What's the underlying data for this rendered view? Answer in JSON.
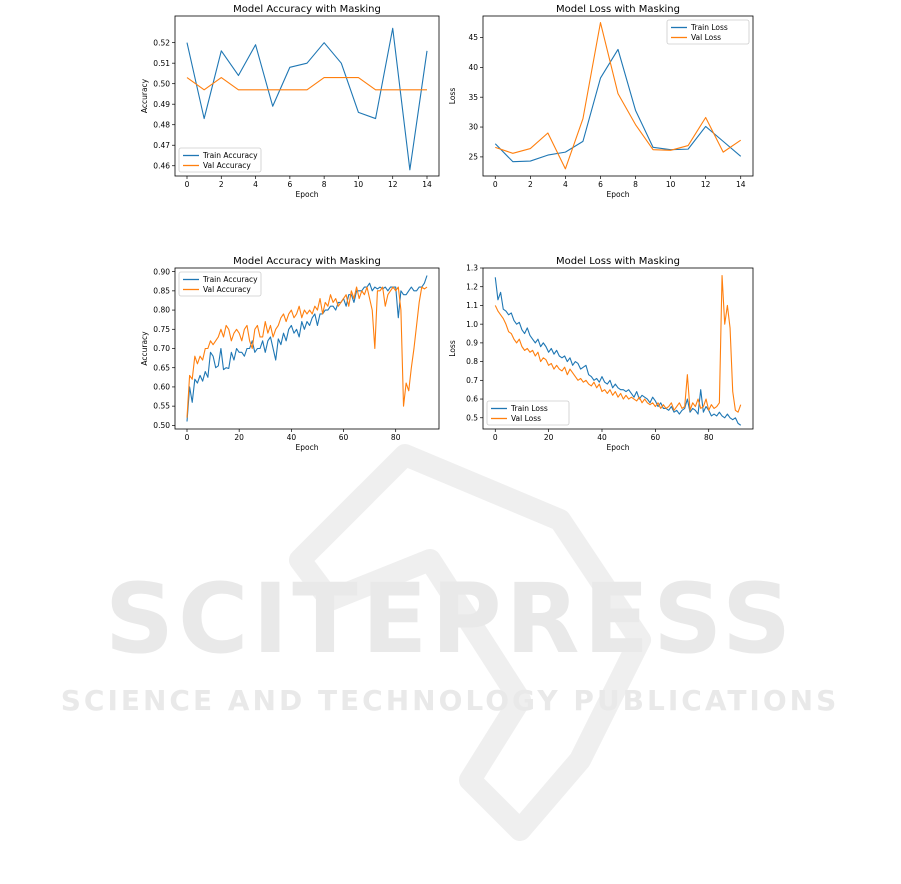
{
  "watermark": {
    "brand": "SCITEPRESS",
    "tagline": "SCIENCE AND TECHNOLOGY PUBLICATIONS"
  },
  "colors": {
    "train": "#1f77b4",
    "val": "#ff7f0e",
    "watermark": "#ececec"
  },
  "chart_data": [
    {
      "type": "line",
      "title": "Model Accuracy with Masking",
      "xlabel": "Epoch",
      "ylabel": "Accuracy",
      "xlim": [
        -0.7,
        14.7
      ],
      "ylim": [
        0.455,
        0.533
      ],
      "xticks": [
        0,
        2,
        4,
        6,
        8,
        10,
        12,
        14
      ],
      "yticks": [
        0.46,
        0.47,
        0.48,
        0.49,
        0.5,
        0.51,
        0.52
      ],
      "ytick_labels": [
        "0.46",
        "0.47",
        "0.48",
        "0.49",
        "0.50",
        "0.51",
        "0.52"
      ],
      "legend": "lower-left",
      "series": [
        {
          "name": "Train Accuracy",
          "color": "#1f77b4",
          "x": [
            0,
            1,
            2,
            3,
            4,
            5,
            6,
            7,
            8,
            9,
            10,
            11,
            12,
            13,
            14
          ],
          "values": [
            0.52,
            0.483,
            0.516,
            0.504,
            0.519,
            0.489,
            0.508,
            0.51,
            0.52,
            0.51,
            0.486,
            0.483,
            0.527,
            0.458,
            0.516
          ]
        },
        {
          "name": "Val Accuracy",
          "color": "#ff7f0e",
          "x": [
            0,
            1,
            2,
            3,
            4,
            5,
            6,
            7,
            8,
            9,
            10,
            11,
            12,
            13,
            14
          ],
          "values": [
            0.503,
            0.497,
            0.503,
            0.497,
            0.497,
            0.497,
            0.497,
            0.497,
            0.503,
            0.503,
            0.503,
            0.497,
            0.497,
            0.497,
            0.497
          ]
        }
      ]
    },
    {
      "type": "line",
      "title": "Model Loss with Masking",
      "xlabel": "Epoch",
      "ylabel": "Loss",
      "xlim": [
        -0.7,
        14.7
      ],
      "ylim": [
        21.8,
        48.6
      ],
      "xticks": [
        0,
        2,
        4,
        6,
        8,
        10,
        12,
        14
      ],
      "yticks": [
        25,
        30,
        35,
        40,
        45
      ],
      "ytick_labels": [
        "25",
        "30",
        "35",
        "40",
        "45"
      ],
      "legend": "top-right",
      "series": [
        {
          "name": "Train Loss",
          "color": "#1f77b4",
          "x": [
            0,
            1,
            2,
            3,
            4,
            5,
            6,
            7,
            8,
            9,
            10,
            11,
            12,
            13,
            14
          ],
          "values": [
            27.2,
            24.2,
            24.3,
            25.3,
            25.8,
            27.6,
            38.2,
            43.0,
            32.8,
            26.6,
            26.2,
            26.3,
            30.1,
            27.6,
            25.1
          ]
        },
        {
          "name": "Val Loss",
          "color": "#ff7f0e",
          "x": [
            0,
            1,
            2,
            3,
            4,
            5,
            6,
            7,
            8,
            9,
            10,
            11,
            12,
            13,
            14
          ],
          "values": [
            26.6,
            25.6,
            26.4,
            29.0,
            23.0,
            31.4,
            47.5,
            35.6,
            30.4,
            26.2,
            26.1,
            26.9,
            31.6,
            25.8,
            27.8
          ]
        }
      ]
    },
    {
      "type": "line",
      "title": "Model Accuracy with Masking",
      "xlabel": "Epoch",
      "ylabel": "Accuracy",
      "xlim": [
        -4.6,
        96.6
      ],
      "ylim": [
        0.4905,
        0.9095
      ],
      "xticks": [
        0,
        20,
        40,
        60,
        80
      ],
      "yticks": [
        0.5,
        0.55,
        0.6,
        0.65,
        0.7,
        0.75,
        0.8,
        0.85,
        0.9
      ],
      "ytick_labels": [
        "0.50",
        "0.55",
        "0.60",
        "0.65",
        "0.70",
        "0.75",
        "0.80",
        "0.85",
        "0.90"
      ],
      "legend": "top-left",
      "series": [
        {
          "name": "Train Accuracy",
          "color": "#1f77b4",
          "x": [
            0,
            1,
            2,
            3,
            4,
            5,
            6,
            7,
            8,
            9,
            10,
            11,
            12,
            13,
            14,
            15,
            16,
            17,
            18,
            19,
            20,
            21,
            22,
            23,
            24,
            25,
            26,
            27,
            28,
            29,
            30,
            31,
            32,
            33,
            34,
            35,
            36,
            37,
            38,
            39,
            40,
            41,
            42,
            43,
            44,
            45,
            46,
            47,
            48,
            49,
            50,
            51,
            52,
            53,
            54,
            55,
            56,
            57,
            58,
            59,
            60,
            61,
            62,
            63,
            64,
            65,
            66,
            67,
            68,
            69,
            70,
            71,
            72,
            73,
            74,
            75,
            76,
            77,
            78,
            79,
            80,
            81,
            82,
            83,
            84,
            85,
            86,
            87,
            88,
            89,
            90,
            91,
            92
          ],
          "values": [
            0.51,
            0.6,
            0.56,
            0.62,
            0.61,
            0.63,
            0.615,
            0.64,
            0.625,
            0.69,
            0.68,
            0.65,
            0.655,
            0.7,
            0.645,
            0.65,
            0.648,
            0.69,
            0.67,
            0.7,
            0.69,
            0.69,
            0.68,
            0.7,
            0.7,
            0.72,
            0.69,
            0.7,
            0.7,
            0.72,
            0.69,
            0.72,
            0.73,
            0.7,
            0.67,
            0.725,
            0.71,
            0.74,
            0.72,
            0.75,
            0.76,
            0.74,
            0.75,
            0.73,
            0.77,
            0.75,
            0.77,
            0.76,
            0.78,
            0.79,
            0.76,
            0.79,
            0.79,
            0.8,
            0.8,
            0.81,
            0.81,
            0.8,
            0.82,
            0.82,
            0.83,
            0.81,
            0.84,
            0.84,
            0.82,
            0.85,
            0.85,
            0.85,
            0.86,
            0.86,
            0.87,
            0.85,
            0.86,
            0.855,
            0.86,
            0.855,
            0.86,
            0.85,
            0.86,
            0.86,
            0.86,
            0.78,
            0.85,
            0.84,
            0.84,
            0.85,
            0.86,
            0.85,
            0.85,
            0.86,
            0.86,
            0.87,
            0.89
          ]
        },
        {
          "name": "Val Accuracy",
          "color": "#ff7f0e",
          "x": [
            0,
            1,
            2,
            3,
            4,
            5,
            6,
            7,
            8,
            9,
            10,
            11,
            12,
            13,
            14,
            15,
            16,
            17,
            18,
            19,
            20,
            21,
            22,
            23,
            24,
            25,
            26,
            27,
            28,
            29,
            30,
            31,
            32,
            33,
            34,
            35,
            36,
            37,
            38,
            39,
            40,
            41,
            42,
            43,
            44,
            45,
            46,
            47,
            48,
            49,
            50,
            51,
            52,
            53,
            54,
            55,
            56,
            57,
            58,
            59,
            60,
            61,
            62,
            63,
            64,
            65,
            66,
            67,
            68,
            69,
            70,
            71,
            72,
            73,
            74,
            75,
            76,
            77,
            78,
            79,
            80,
            81,
            82,
            83,
            84,
            85,
            86,
            87,
            88,
            89,
            90,
            91,
            92
          ],
          "values": [
            0.52,
            0.63,
            0.62,
            0.68,
            0.66,
            0.68,
            0.67,
            0.7,
            0.7,
            0.72,
            0.71,
            0.72,
            0.73,
            0.75,
            0.73,
            0.76,
            0.75,
            0.72,
            0.74,
            0.75,
            0.74,
            0.72,
            0.75,
            0.76,
            0.72,
            0.7,
            0.75,
            0.76,
            0.73,
            0.73,
            0.77,
            0.74,
            0.76,
            0.73,
            0.75,
            0.76,
            0.78,
            0.79,
            0.77,
            0.79,
            0.8,
            0.78,
            0.79,
            0.81,
            0.78,
            0.8,
            0.79,
            0.8,
            0.79,
            0.81,
            0.8,
            0.83,
            0.79,
            0.82,
            0.81,
            0.84,
            0.82,
            0.83,
            0.81,
            0.82,
            0.83,
            0.84,
            0.81,
            0.85,
            0.83,
            0.86,
            0.83,
            0.85,
            0.84,
            0.86,
            0.83,
            0.8,
            0.7,
            0.85,
            0.85,
            0.86,
            0.81,
            0.84,
            0.85,
            0.86,
            0.85,
            0.86,
            0.8,
            0.55,
            0.61,
            0.59,
            0.65,
            0.7,
            0.76,
            0.82,
            0.86,
            0.855,
            0.86
          ]
        }
      ]
    },
    {
      "type": "line",
      "title": "Model Loss with Masking",
      "xlabel": "Epoch",
      "ylabel": "Loss",
      "xlim": [
        -4.6,
        96.6
      ],
      "ylim": [
        0.44,
        1.3
      ],
      "xticks": [
        0,
        20,
        40,
        60,
        80
      ],
      "yticks": [
        0.5,
        0.6,
        0.7,
        0.8,
        0.9,
        1.0,
        1.1,
        1.2,
        1.3
      ],
      "ytick_labels": [
        "0.5",
        "0.6",
        "0.7",
        "0.8",
        "0.9",
        "1.0",
        "1.1",
        "1.2",
        "1.3"
      ],
      "legend": "lower-left",
      "series": [
        {
          "name": "Train Loss",
          "color": "#1f77b4",
          "x": [
            0,
            1,
            2,
            3,
            4,
            5,
            6,
            7,
            8,
            9,
            10,
            11,
            12,
            13,
            14,
            15,
            16,
            17,
            18,
            19,
            20,
            21,
            22,
            23,
            24,
            25,
            26,
            27,
            28,
            29,
            30,
            31,
            32,
            33,
            34,
            35,
            36,
            37,
            38,
            39,
            40,
            41,
            42,
            43,
            44,
            45,
            46,
            47,
            48,
            49,
            50,
            51,
            52,
            53,
            54,
            55,
            56,
            57,
            58,
            59,
            60,
            61,
            62,
            63,
            64,
            65,
            66,
            67,
            68,
            69,
            70,
            71,
            72,
            73,
            74,
            75,
            76,
            77,
            78,
            79,
            80,
            81,
            82,
            83,
            84,
            85,
            86,
            87,
            88,
            89,
            90,
            91,
            92
          ],
          "values": [
            1.25,
            1.13,
            1.17,
            1.08,
            1.07,
            1.05,
            1.06,
            1.02,
            1.0,
            1.01,
            0.97,
            0.95,
            0.98,
            0.94,
            0.92,
            0.9,
            0.92,
            0.88,
            0.9,
            0.88,
            0.85,
            0.87,
            0.84,
            0.86,
            0.83,
            0.82,
            0.83,
            0.8,
            0.82,
            0.78,
            0.8,
            0.79,
            0.76,
            0.77,
            0.78,
            0.73,
            0.72,
            0.7,
            0.71,
            0.69,
            0.72,
            0.69,
            0.68,
            0.7,
            0.66,
            0.68,
            0.66,
            0.65,
            0.65,
            0.64,
            0.65,
            0.63,
            0.61,
            0.64,
            0.6,
            0.62,
            0.61,
            0.6,
            0.58,
            0.61,
            0.59,
            0.56,
            0.58,
            0.55,
            0.55,
            0.54,
            0.56,
            0.53,
            0.54,
            0.52,
            0.54,
            0.55,
            0.6,
            0.53,
            0.55,
            0.54,
            0.52,
            0.65,
            0.53,
            0.56,
            0.54,
            0.51,
            0.52,
            0.51,
            0.53,
            0.51,
            0.5,
            0.52,
            0.5,
            0.49,
            0.5,
            0.47,
            0.46
          ]
        },
        {
          "name": "Val Loss",
          "color": "#ff7f0e",
          "x": [
            0,
            1,
            2,
            3,
            4,
            5,
            6,
            7,
            8,
            9,
            10,
            11,
            12,
            13,
            14,
            15,
            16,
            17,
            18,
            19,
            20,
            21,
            22,
            23,
            24,
            25,
            26,
            27,
            28,
            29,
            30,
            31,
            32,
            33,
            34,
            35,
            36,
            37,
            38,
            39,
            40,
            41,
            42,
            43,
            44,
            45,
            46,
            47,
            48,
            49,
            50,
            51,
            52,
            53,
            54,
            55,
            56,
            57,
            58,
            59,
            60,
            61,
            62,
            63,
            64,
            65,
            66,
            67,
            68,
            69,
            70,
            71,
            72,
            73,
            74,
            75,
            76,
            77,
            78,
            79,
            80,
            81,
            82,
            83,
            84,
            85,
            86,
            87,
            88,
            89,
            90,
            91,
            92
          ],
          "values": [
            1.1,
            1.07,
            1.05,
            1.03,
            1.0,
            0.96,
            0.95,
            0.92,
            0.9,
            0.92,
            0.88,
            0.86,
            0.87,
            0.85,
            0.86,
            0.83,
            0.85,
            0.8,
            0.82,
            0.81,
            0.78,
            0.79,
            0.76,
            0.78,
            0.76,
            0.75,
            0.77,
            0.73,
            0.76,
            0.74,
            0.72,
            0.7,
            0.71,
            0.69,
            0.7,
            0.68,
            0.67,
            0.69,
            0.66,
            0.68,
            0.64,
            0.65,
            0.63,
            0.65,
            0.62,
            0.64,
            0.61,
            0.63,
            0.6,
            0.62,
            0.6,
            0.61,
            0.6,
            0.59,
            0.61,
            0.58,
            0.6,
            0.58,
            0.57,
            0.58,
            0.56,
            0.58,
            0.55,
            0.57,
            0.55,
            0.56,
            0.58,
            0.54,
            0.56,
            0.58,
            0.55,
            0.56,
            0.73,
            0.54,
            0.58,
            0.56,
            0.6,
            0.55,
            0.56,
            0.6,
            0.54,
            0.57,
            0.55,
            0.56,
            0.58,
            1.26,
            1.0,
            1.1,
            0.98,
            0.64,
            0.54,
            0.53,
            0.57
          ]
        }
      ]
    }
  ]
}
